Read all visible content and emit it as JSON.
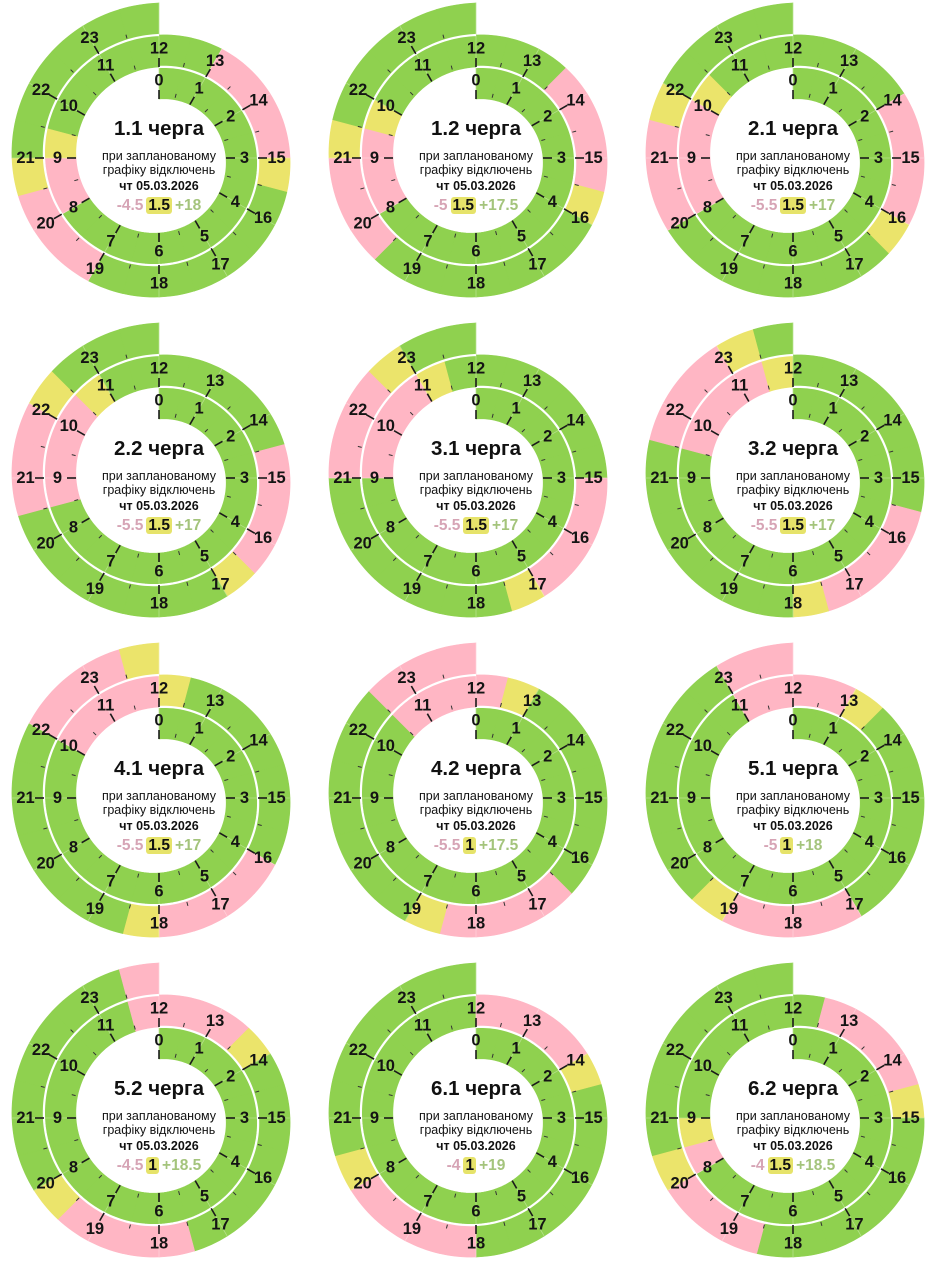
{
  "colors": {
    "on": "#8fd14f",
    "off": "#ffb6c4",
    "maybe": "#ebe46b",
    "summary_off_text": "#d6a4b5",
    "summary_on_text": "#a4c47c",
    "summary_maybe_bg": "#e6e36a"
  },
  "hour_labels": [
    "0",
    "1",
    "2",
    "3",
    "4",
    "5",
    "6",
    "7",
    "8",
    "9",
    "10",
    "11",
    "12",
    "13",
    "14",
    "15",
    "16",
    "17",
    "18",
    "19",
    "20",
    "21",
    "22",
    "23"
  ],
  "chart_data": {
    "type": "spiral-clock",
    "units": "hours",
    "statuses": {
      "on": "power on (green)",
      "off": "outage (pink)",
      "maybe": "possible outage (yellow)"
    },
    "queues": [
      {
        "title": "1.1 черга",
        "subtitle1": "при запланованому",
        "subtitle2": "графіку відключень",
        "date": "чт 05.03.2026",
        "off_total": "-4.5",
        "maybe_total": "1.5",
        "on_total": "+18",
        "off": [
          [
            8,
            9
          ],
          [
            13,
            15
          ],
          [
            19,
            20.5
          ]
        ],
        "maybe": [
          [
            9,
            9.5
          ],
          [
            15,
            15.5
          ],
          [
            20.5,
            21
          ]
        ]
      },
      {
        "title": "1.2 черга",
        "subtitle1": "при запланованому",
        "subtitle2": "графіку відключень",
        "date": "чт 05.03.2026",
        "off_total": "-5",
        "maybe_total": "1.5",
        "on_total": "+17.5",
        "off": [
          [
            8,
            9.5
          ],
          [
            13.5,
            15.5
          ],
          [
            19.5,
            21
          ]
        ],
        "maybe": [
          [
            9.5,
            10
          ],
          [
            15.5,
            16
          ],
          [
            21,
            21.5
          ]
        ]
      },
      {
        "title": "2.1 черга",
        "subtitle1": "при запланованому",
        "subtitle2": "графіку відключень",
        "date": "чт 05.03.2026",
        "off_total": "-5.5",
        "maybe_total": "1.5",
        "on_total": "+17",
        "off": [
          [
            8,
            10
          ],
          [
            14,
            16
          ],
          [
            20,
            21.5
          ]
        ],
        "maybe": [
          [
            10,
            10.5
          ],
          [
            16,
            16.5
          ],
          [
            21.5,
            22
          ]
        ]
      },
      {
        "title": "2.2 черга",
        "subtitle1": "при запланованому",
        "subtitle2": "графіку відключень",
        "date": "чт 05.03.2026",
        "off_total": "-5.5",
        "maybe_total": "1.5",
        "on_total": "+17",
        "off": [
          [
            8.5,
            10.5
          ],
          [
            14.5,
            16.5
          ],
          [
            20.5,
            22
          ]
        ],
        "maybe": [
          [
            10.5,
            11
          ],
          [
            16.5,
            17
          ],
          [
            22,
            22.5
          ]
        ]
      },
      {
        "title": "3.1 черга",
        "subtitle1": "при запланованому",
        "subtitle2": "графіку відключень",
        "date": "чт 05.03.2026",
        "off_total": "-5.5",
        "maybe_total": "1.5",
        "on_total": "+17",
        "off": [
          [
            9,
            11
          ],
          [
            15,
            17
          ],
          [
            21,
            22.5
          ]
        ],
        "maybe": [
          [
            11,
            11.5
          ],
          [
            17,
            17.5
          ],
          [
            22.5,
            23
          ]
        ]
      },
      {
        "title": "3.2 черга",
        "subtitle1": "при запланованому",
        "subtitle2": "графіку відключень",
        "date": "чт 05.03.2026",
        "off_total": "-5.5",
        "maybe_total": "1.5",
        "on_total": "+17",
        "off": [
          [
            9.5,
            11.5
          ],
          [
            15.5,
            17.5
          ],
          [
            21.5,
            23
          ]
        ],
        "maybe": [
          [
            11.5,
            12
          ],
          [
            17.5,
            18
          ],
          [
            23,
            23.5
          ]
        ]
      },
      {
        "title": "4.1 черга",
        "subtitle1": "при запланованому",
        "subtitle2": "графіку відключень",
        "date": "чт 05.03.2026",
        "off_total": "-5.5",
        "maybe_total": "1.5",
        "on_total": "+17",
        "off": [
          [
            10,
            12
          ],
          [
            16,
            18
          ],
          [
            22,
            23.5
          ]
        ],
        "maybe": [
          [
            12,
            12.5
          ],
          [
            18,
            18.5
          ],
          [
            23.5,
            24
          ]
        ]
      },
      {
        "title": "4.2 черга",
        "subtitle1": "при запланованому",
        "subtitle2": "графіку відключень",
        "date": "чт 05.03.2026",
        "off_total": "-5.5",
        "maybe_total": "1",
        "on_total": "+17.5",
        "off": [
          [
            10.5,
            12.5
          ],
          [
            16.5,
            18.5
          ],
          [
            22.5,
            24
          ]
        ],
        "maybe": [
          [
            12.5,
            13
          ],
          [
            18.5,
            19
          ]
        ]
      },
      {
        "title": "5.1 черга",
        "subtitle1": "при запланованому",
        "subtitle2": "графіку відключень",
        "date": "чт 05.03.2026",
        "off_total": "-5",
        "maybe_total": "1",
        "on_total": "+18",
        "off": [
          [
            11,
            13
          ],
          [
            17,
            19
          ],
          [
            23,
            24
          ]
        ],
        "maybe": [
          [
            13,
            13.5
          ],
          [
            19,
            19.5
          ]
        ]
      },
      {
        "title": "5.2 черга",
        "subtitle1": "при запланованому",
        "subtitle2": "графіку відключень",
        "date": "чт 05.03.2026",
        "off_total": "-4.5",
        "maybe_total": "1",
        "on_total": "+18.5",
        "off": [
          [
            11.5,
            13.5
          ],
          [
            17.5,
            19.5
          ],
          [
            23.5,
            24
          ]
        ],
        "maybe": [
          [
            13.5,
            14
          ],
          [
            19.5,
            20
          ]
        ]
      },
      {
        "title": "6.1 черга",
        "subtitle1": "при запланованому",
        "subtitle2": "графіку відключень",
        "date": "чт 05.03.2026",
        "off_total": "-4",
        "maybe_total": "1",
        "on_total": "+19",
        "off": [
          [
            12,
            14
          ],
          [
            18,
            20
          ]
        ],
        "maybe": [
          [
            14,
            14.5
          ],
          [
            20,
            20.5
          ]
        ]
      },
      {
        "title": "6.2 черга",
        "subtitle1": "при запланованому",
        "subtitle2": "графіку відключень",
        "date": "чт 05.03.2026",
        "off_total": "-4",
        "maybe_total": "1.5",
        "on_total": "+18.5",
        "off": [
          [
            8,
            8.5
          ],
          [
            12.5,
            14.5
          ],
          [
            18.5,
            20
          ]
        ],
        "maybe": [
          [
            8.5,
            9
          ],
          [
            14.5,
            15
          ],
          [
            20,
            20.5
          ]
        ]
      }
    ]
  }
}
